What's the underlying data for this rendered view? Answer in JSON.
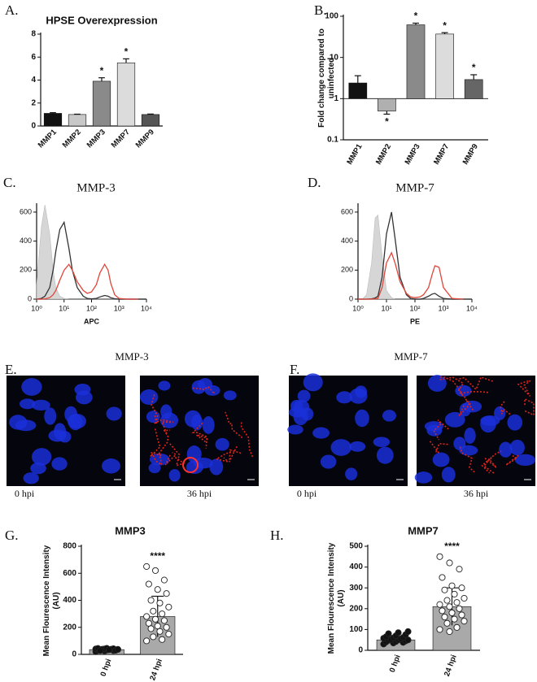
{
  "chart_data": [
    {
      "type": "bar",
      "label": "A.",
      "title": "HPSE Overexpression",
      "categories": [
        "MMP1",
        "MMP2",
        "MMP3",
        "MMP7",
        "MMP9"
      ],
      "values": [
        1.1,
        1.0,
        3.9,
        5.5,
        1.0
      ],
      "errors": [
        0.06,
        0.03,
        0.3,
        0.35,
        0.04
      ],
      "colors": [
        "#111111",
        "#c8c8c8",
        "#8a8a8a",
        "#dcdcdc",
        "#555555"
      ],
      "significance": [
        null,
        null,
        "*",
        "*",
        null
      ],
      "ylim": [
        0,
        8
      ],
      "yticks": [
        0,
        2,
        4,
        6,
        8
      ]
    },
    {
      "type": "bar",
      "label": "B.",
      "ylabel": "Fold change compared to uninfected",
      "ylog": true,
      "categories": [
        "MMP1",
        "MMP2",
        "MMP3",
        "MMP7",
        "MMP9"
      ],
      "values": [
        2.4,
        0.5,
        62,
        37,
        2.9
      ],
      "errors": [
        1.2,
        0.08,
        6,
        3,
        0.9
      ],
      "colors": [
        "#111111",
        "#b0b0b0",
        "#8a8a8a",
        "#dcdcdc",
        "#666666"
      ],
      "significance": [
        null,
        "*",
        "*",
        "*",
        "*"
      ],
      "ylim": [
        0.1,
        100
      ],
      "yticks": [
        0.1,
        1,
        10,
        100
      ]
    },
    {
      "type": "line",
      "label": "C.",
      "title": "MMP-3",
      "xlabel": "APC",
      "xlog": true,
      "x": [
        1,
        1.5,
        2,
        3,
        4,
        5,
        7,
        10,
        15,
        20,
        30,
        50,
        70,
        100,
        150,
        200,
        300,
        400,
        500,
        700,
        1000,
        2000,
        5000
      ],
      "series": [
        {
          "color": "#cfcfcf",
          "fill": true,
          "values": [
            100,
            500,
            650,
            450,
            200,
            80,
            20,
            5,
            0,
            0,
            0,
            0,
            0,
            0,
            0,
            0,
            0,
            0,
            0,
            0,
            0,
            0,
            0
          ]
        },
        {
          "color": "#333333",
          "values": [
            0,
            5,
            20,
            80,
            200,
            330,
            480,
            530,
            350,
            200,
            80,
            20,
            5,
            2,
            5,
            15,
            25,
            20,
            10,
            3,
            0,
            0,
            0
          ]
        },
        {
          "color": "#e0453a",
          "values": [
            0,
            0,
            2,
            10,
            30,
            60,
            130,
            200,
            240,
            200,
            120,
            60,
            40,
            50,
            100,
            180,
            240,
            200,
            110,
            30,
            5,
            0,
            0
          ]
        }
      ],
      "xlim": [
        1,
        10000
      ],
      "xticks": [
        {
          "value": 1,
          "label": "10⁰"
        },
        {
          "value": 10,
          "label": "10¹"
        },
        {
          "value": 100,
          "label": "10²"
        },
        {
          "value": 1000,
          "label": "10³"
        },
        {
          "value": 10000,
          "label": "10⁴"
        }
      ],
      "ylim": [
        0,
        650
      ],
      "yticks": [
        0,
        200,
        400,
        600
      ]
    },
    {
      "type": "line",
      "label": "D.",
      "title": "MMP-7",
      "xlabel": "PE",
      "xlog": true,
      "x": [
        1,
        1.5,
        2,
        3,
        4,
        5,
        7,
        10,
        15,
        20,
        30,
        50,
        70,
        100,
        150,
        200,
        300,
        400,
        500,
        700,
        1000,
        2000,
        5000
      ],
      "series": [
        {
          "color": "#cfcfcf",
          "fill": true,
          "values": [
            0,
            5,
            30,
            250,
            560,
            580,
            300,
            60,
            10,
            0,
            0,
            0,
            0,
            0,
            0,
            0,
            0,
            0,
            0,
            0,
            0,
            0,
            0
          ]
        },
        {
          "color": "#333333",
          "values": [
            0,
            0,
            0,
            2,
            8,
            20,
            150,
            450,
            600,
            420,
            150,
            30,
            5,
            0,
            0,
            5,
            20,
            35,
            40,
            20,
            5,
            0,
            0
          ]
        },
        {
          "color": "#e0453a",
          "values": [
            0,
            0,
            0,
            0,
            2,
            5,
            80,
            250,
            320,
            250,
            120,
            40,
            15,
            10,
            15,
            30,
            80,
            170,
            230,
            220,
            80,
            5,
            0
          ]
        }
      ],
      "xlim": [
        1,
        10000
      ],
      "xticks": [
        {
          "value": 1,
          "label": "10⁰"
        },
        {
          "value": 10,
          "label": "10¹"
        },
        {
          "value": 100,
          "label": "10²"
        },
        {
          "value": 1000,
          "label": "10³"
        },
        {
          "value": 10000,
          "label": "10⁴"
        }
      ],
      "ylim": [
        0,
        650
      ],
      "yticks": [
        0,
        200,
        400,
        600
      ]
    },
    {
      "type": "bar",
      "label": "G.",
      "title": "MMP3",
      "ylabel": "Mean Flourescence Intensity (AU)",
      "categories": [
        "0 hpi",
        "24 hpi"
      ],
      "values": [
        35,
        280
      ],
      "errors": [
        10,
        150
      ],
      "colors": [
        "#a9a9a9",
        "#a9a9a9"
      ],
      "point_colors": [
        "#111111",
        "#ffffff"
      ],
      "significance": [
        null,
        "****"
      ],
      "points": [
        [
          20,
          25,
          28,
          30,
          32,
          33,
          35,
          35,
          36,
          38,
          38,
          40,
          40,
          42,
          44,
          45,
          30,
          28,
          34,
          37
        ],
        [
          650,
          620,
          550,
          520,
          480,
          450,
          400,
          380,
          350,
          320,
          300,
          280,
          260,
          250,
          230,
          210,
          200,
          190,
          170,
          150,
          130,
          110,
          100
        ]
      ],
      "ylim": [
        0,
        800
      ],
      "yticks": [
        0,
        200,
        400,
        600,
        800
      ]
    },
    {
      "type": "bar",
      "label": "H.",
      "title": "MMP7",
      "ylabel": "Mean Flourescence Intensity (AU)",
      "categories": [
        "0 hpi",
        "24 hpi"
      ],
      "values": [
        50,
        210
      ],
      "errors": [
        12,
        90
      ],
      "colors": [
        "#a9a9a9",
        "#a9a9a9"
      ],
      "point_colors": [
        "#111111",
        "#ffffff"
      ],
      "significance": [
        null,
        "****"
      ],
      "points": [
        [
          30,
          35,
          38,
          40,
          42,
          45,
          48,
          50,
          50,
          52,
          55,
          58,
          60,
          62,
          65,
          70,
          75,
          80,
          85,
          90
        ],
        [
          450,
          420,
          390,
          350,
          310,
          300,
          290,
          270,
          250,
          240,
          230,
          220,
          210,
          200,
          190,
          180,
          170,
          160,
          150,
          140,
          130,
          110,
          100,
          90
        ]
      ],
      "ylim": [
        0,
        500
      ],
      "yticks": [
        0,
        100,
        200,
        300,
        400,
        500
      ]
    }
  ],
  "images": [
    {
      "label": "E.",
      "title": "MMP-3",
      "captions": [
        "0 hpi",
        "36 hpi"
      ]
    },
    {
      "label": "F.",
      "title": "MMP-7",
      "captions": [
        "0 hpi",
        "36 hpi"
      ]
    }
  ]
}
